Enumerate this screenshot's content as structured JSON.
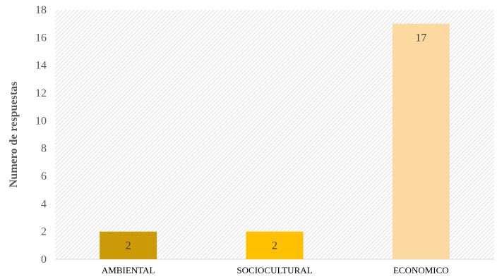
{
  "chart_data": {
    "type": "bar",
    "categories": [
      "AMBIENTAL",
      "SOCIOCULTURAL",
      "ECONOMICO"
    ],
    "values": [
      2,
      2,
      17
    ],
    "bar_colors": [
      "#cc9a06",
      "#ffc000",
      "#fcd9a0"
    ],
    "title": "",
    "xlabel": "",
    "ylabel": "Numero de respuestas",
    "ylim": [
      0,
      18
    ],
    "yticks": [
      "0",
      "2",
      "4",
      "6",
      "8",
      "10",
      "12",
      "14",
      "16",
      "18"
    ],
    "data_labels": [
      "2",
      "2",
      "17"
    ],
    "grid": false,
    "legend": "none",
    "plot_background": "diagonal hatch"
  }
}
